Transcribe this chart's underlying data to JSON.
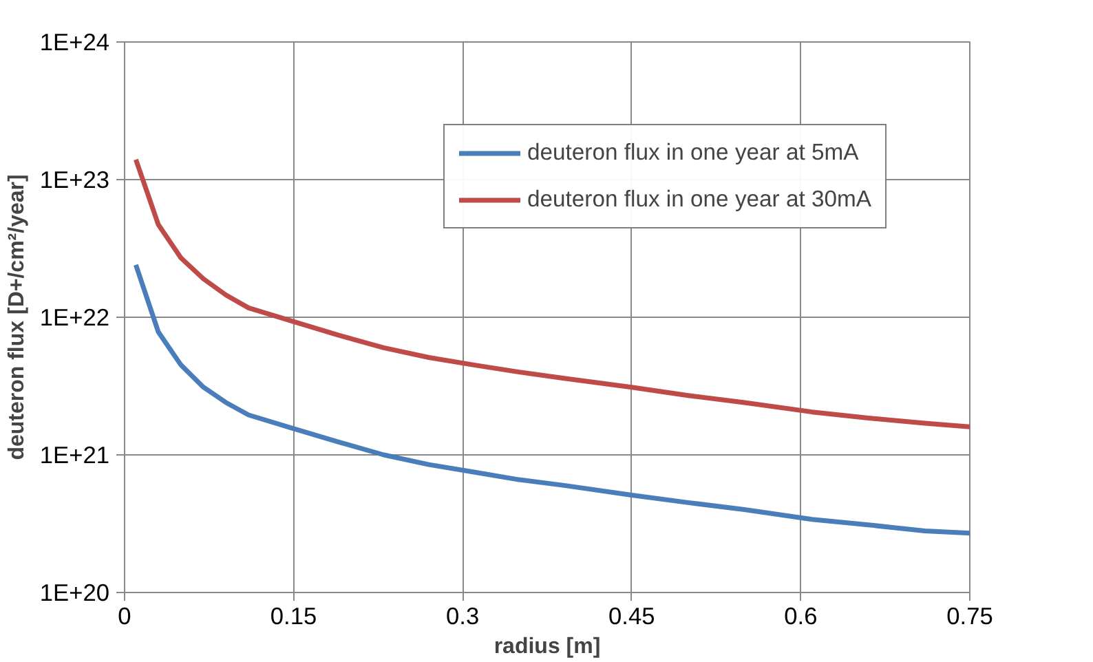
{
  "chart_data": {
    "type": "line",
    "xlabel": "radius [m]",
    "ylabel": "deuteron flux [D+/cm²/year]",
    "x": [
      0.01,
      0.03,
      0.05,
      0.07,
      0.09,
      0.11,
      0.15,
      0.19,
      0.23,
      0.27,
      0.31,
      0.35,
      0.39,
      0.45,
      0.5,
      0.55,
      0.61,
      0.66,
      0.71,
      0.75
    ],
    "series": [
      {
        "name": "deuteron flux in one year at 5mA",
        "color": "#4a7ebb",
        "values": [
          2.4e+22,
          7.8e+21,
          4.5e+21,
          3.1e+21,
          2.4e+21,
          1.95e+21,
          1.55e+21,
          1.24e+21,
          1e+21,
          8.5e+20,
          7.5e+20,
          6.6e+20,
          6e+20,
          5.1e+20,
          4.5e+20,
          4e+20,
          3.4e+20,
          3.1e+20,
          2.8e+20,
          2.7e+20
        ]
      },
      {
        "name": "deuteron flux in one year at 30mA",
        "color": "#be4b48",
        "values": [
          1.4e+23,
          4.7e+22,
          2.7e+22,
          1.9e+22,
          1.45e+22,
          1.17e+22,
          9.3e+21,
          7.4e+21,
          6e+21,
          5.1e+21,
          4.5e+21,
          4e+21,
          3.6e+21,
          3.1e+21,
          2.7e+21,
          2.4e+21,
          2.05e+21,
          1.85e+21,
          1.7e+21,
          1.6e+21
        ]
      }
    ],
    "xlim": [
      0,
      0.75
    ],
    "xticks": [
      0,
      0.15,
      0.3,
      0.45,
      0.6,
      0.75
    ],
    "ylim": [
      1e+20,
      1e+24
    ],
    "yticks": [
      {
        "value": 1e+20,
        "label": "1E+20"
      },
      {
        "value": 1e+21,
        "label": "1E+21"
      },
      {
        "value": 1e+22,
        "label": "1E+22"
      },
      {
        "value": 1e+23,
        "label": "1E+23"
      },
      {
        "value": 1e+24,
        "label": "1E+24"
      }
    ],
    "log": true,
    "grid": true,
    "legend": "top right",
    "marker": "none",
    "line_style": "solid"
  }
}
